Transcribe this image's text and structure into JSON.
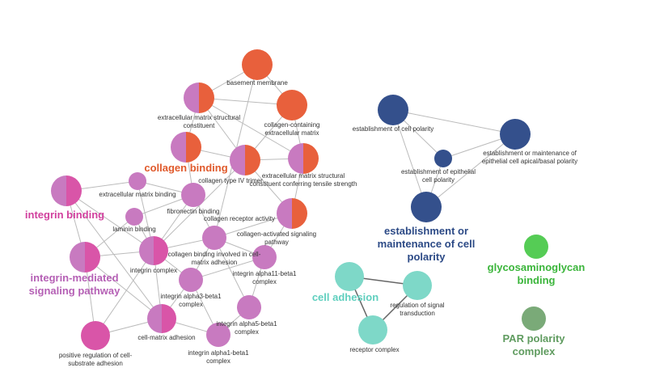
{
  "nodes": [
    {
      "label": "basement membrane"
    },
    {
      "label": "extracellular matrix structural constituent"
    },
    {
      "label": "collagen-containing extracellular matrix"
    },
    {
      "label": "collagen binding"
    },
    {
      "label": "collagen type IV trimer"
    },
    {
      "label": "extracellular matrix structural constituent conferring tensile strength"
    },
    {
      "label": "extracellular matrix binding"
    },
    {
      "label": "fibronectin binding"
    },
    {
      "label": "laminin binding"
    },
    {
      "label": "collagen receptor activity"
    },
    {
      "label": "collagen-activated signaling pathway"
    },
    {
      "label": "integrin complex"
    },
    {
      "label": "collagen binding involved in cell-matrix adhesion"
    },
    {
      "label": "integrin alpha11-beta1 complex"
    },
    {
      "label": "integrin alpha3-beta1 complex"
    },
    {
      "label": "integrin alpha5-beta1 complex"
    },
    {
      "label": "cell-matrix adhesion"
    },
    {
      "label": "integrin alpha1-beta1 complex"
    },
    {
      "label": "integrin binding"
    },
    {
      "label": "integrin-mediated signaling pathway"
    },
    {
      "label": "positive regulation of cell-substrate adhesion"
    },
    {
      "label": "establishment of cell polarity"
    },
    {
      "label": "establishment or maintenance of epithelial cell apical/basal polarity"
    },
    {
      "label": "establishment of epithelial cell polarity"
    },
    {
      "label": "establishment or maintenance of cell polarity"
    },
    {
      "label": "cell adhesion"
    },
    {
      "label": "regulation of signal transduction"
    },
    {
      "label": "receptor complex"
    },
    {
      "label": "glycosaminoglycan binding"
    },
    {
      "label": "PAR polarity complex"
    }
  ]
}
